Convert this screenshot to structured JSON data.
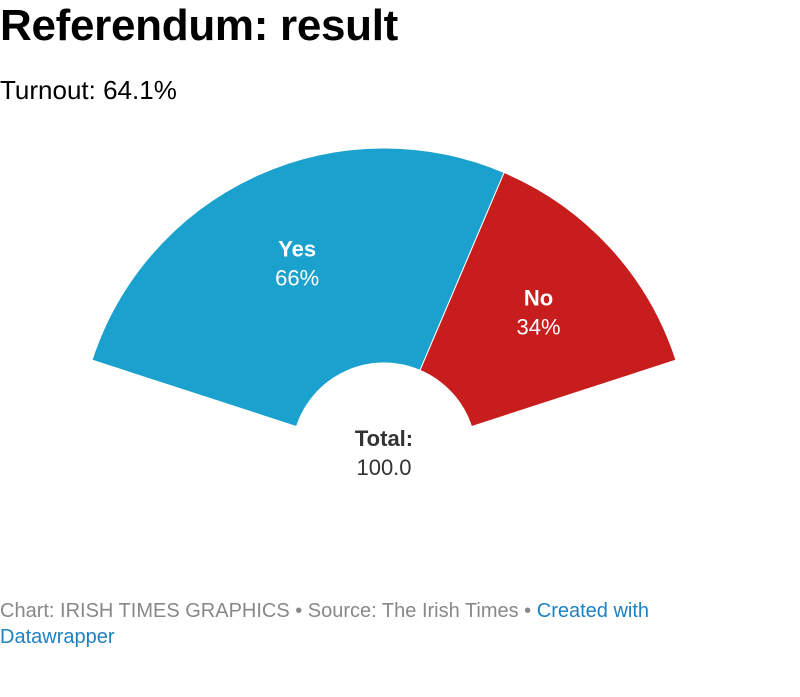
{
  "header": {
    "title": "Referendum: result",
    "subtitle": "Turnout: 64.1%"
  },
  "chart_data": {
    "type": "pie",
    "variant": "semi-donut",
    "slices": [
      {
        "label": "Yes",
        "value": 66,
        "value_label": "66%",
        "color": "#1ba1cd"
      },
      {
        "label": "No",
        "value": 34,
        "value_label": "34%",
        "color": "#c71d1d"
      }
    ],
    "center": {
      "label": "Total:",
      "value": "100.0"
    }
  },
  "footer": {
    "credit": "Chart: IRISH TIMES GRAPHICS • Source: The Irish Times • ",
    "link": "Created with Datawrapper"
  }
}
